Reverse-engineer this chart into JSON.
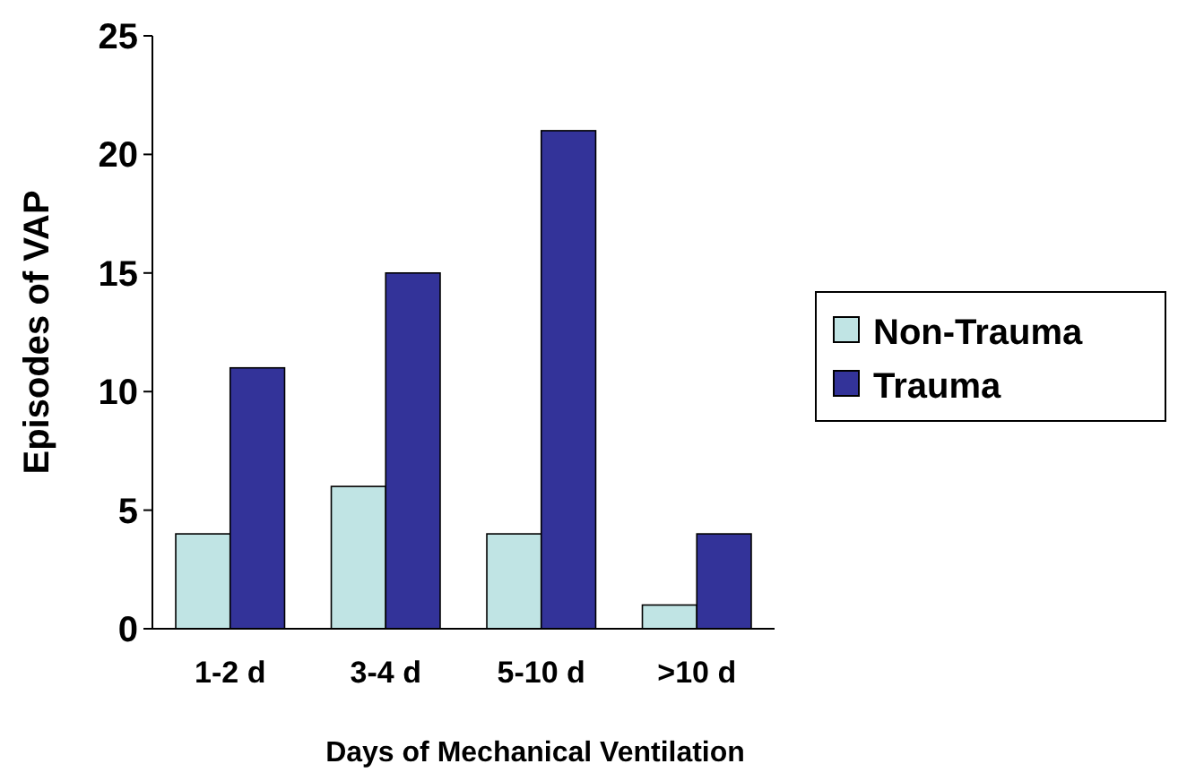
{
  "chart_data": {
    "type": "bar",
    "xlabel": "Days of Mechanical Ventilation",
    "ylabel": "Episodes of VAP",
    "categories": [
      "1-2 d",
      "3-4 d",
      "5-10 d",
      ">10 d"
    ],
    "series": [
      {
        "name": "Non-Trauma",
        "color": "#c0e4e4",
        "values": [
          4,
          6,
          4,
          1
        ]
      },
      {
        "name": "Trauma",
        "color": "#333399",
        "values": [
          11,
          15,
          21,
          4
        ]
      }
    ],
    "ylim": [
      0,
      25
    ],
    "yticks": [
      0,
      5,
      10,
      15,
      20,
      25
    ],
    "grid": false,
    "legend": "right"
  }
}
